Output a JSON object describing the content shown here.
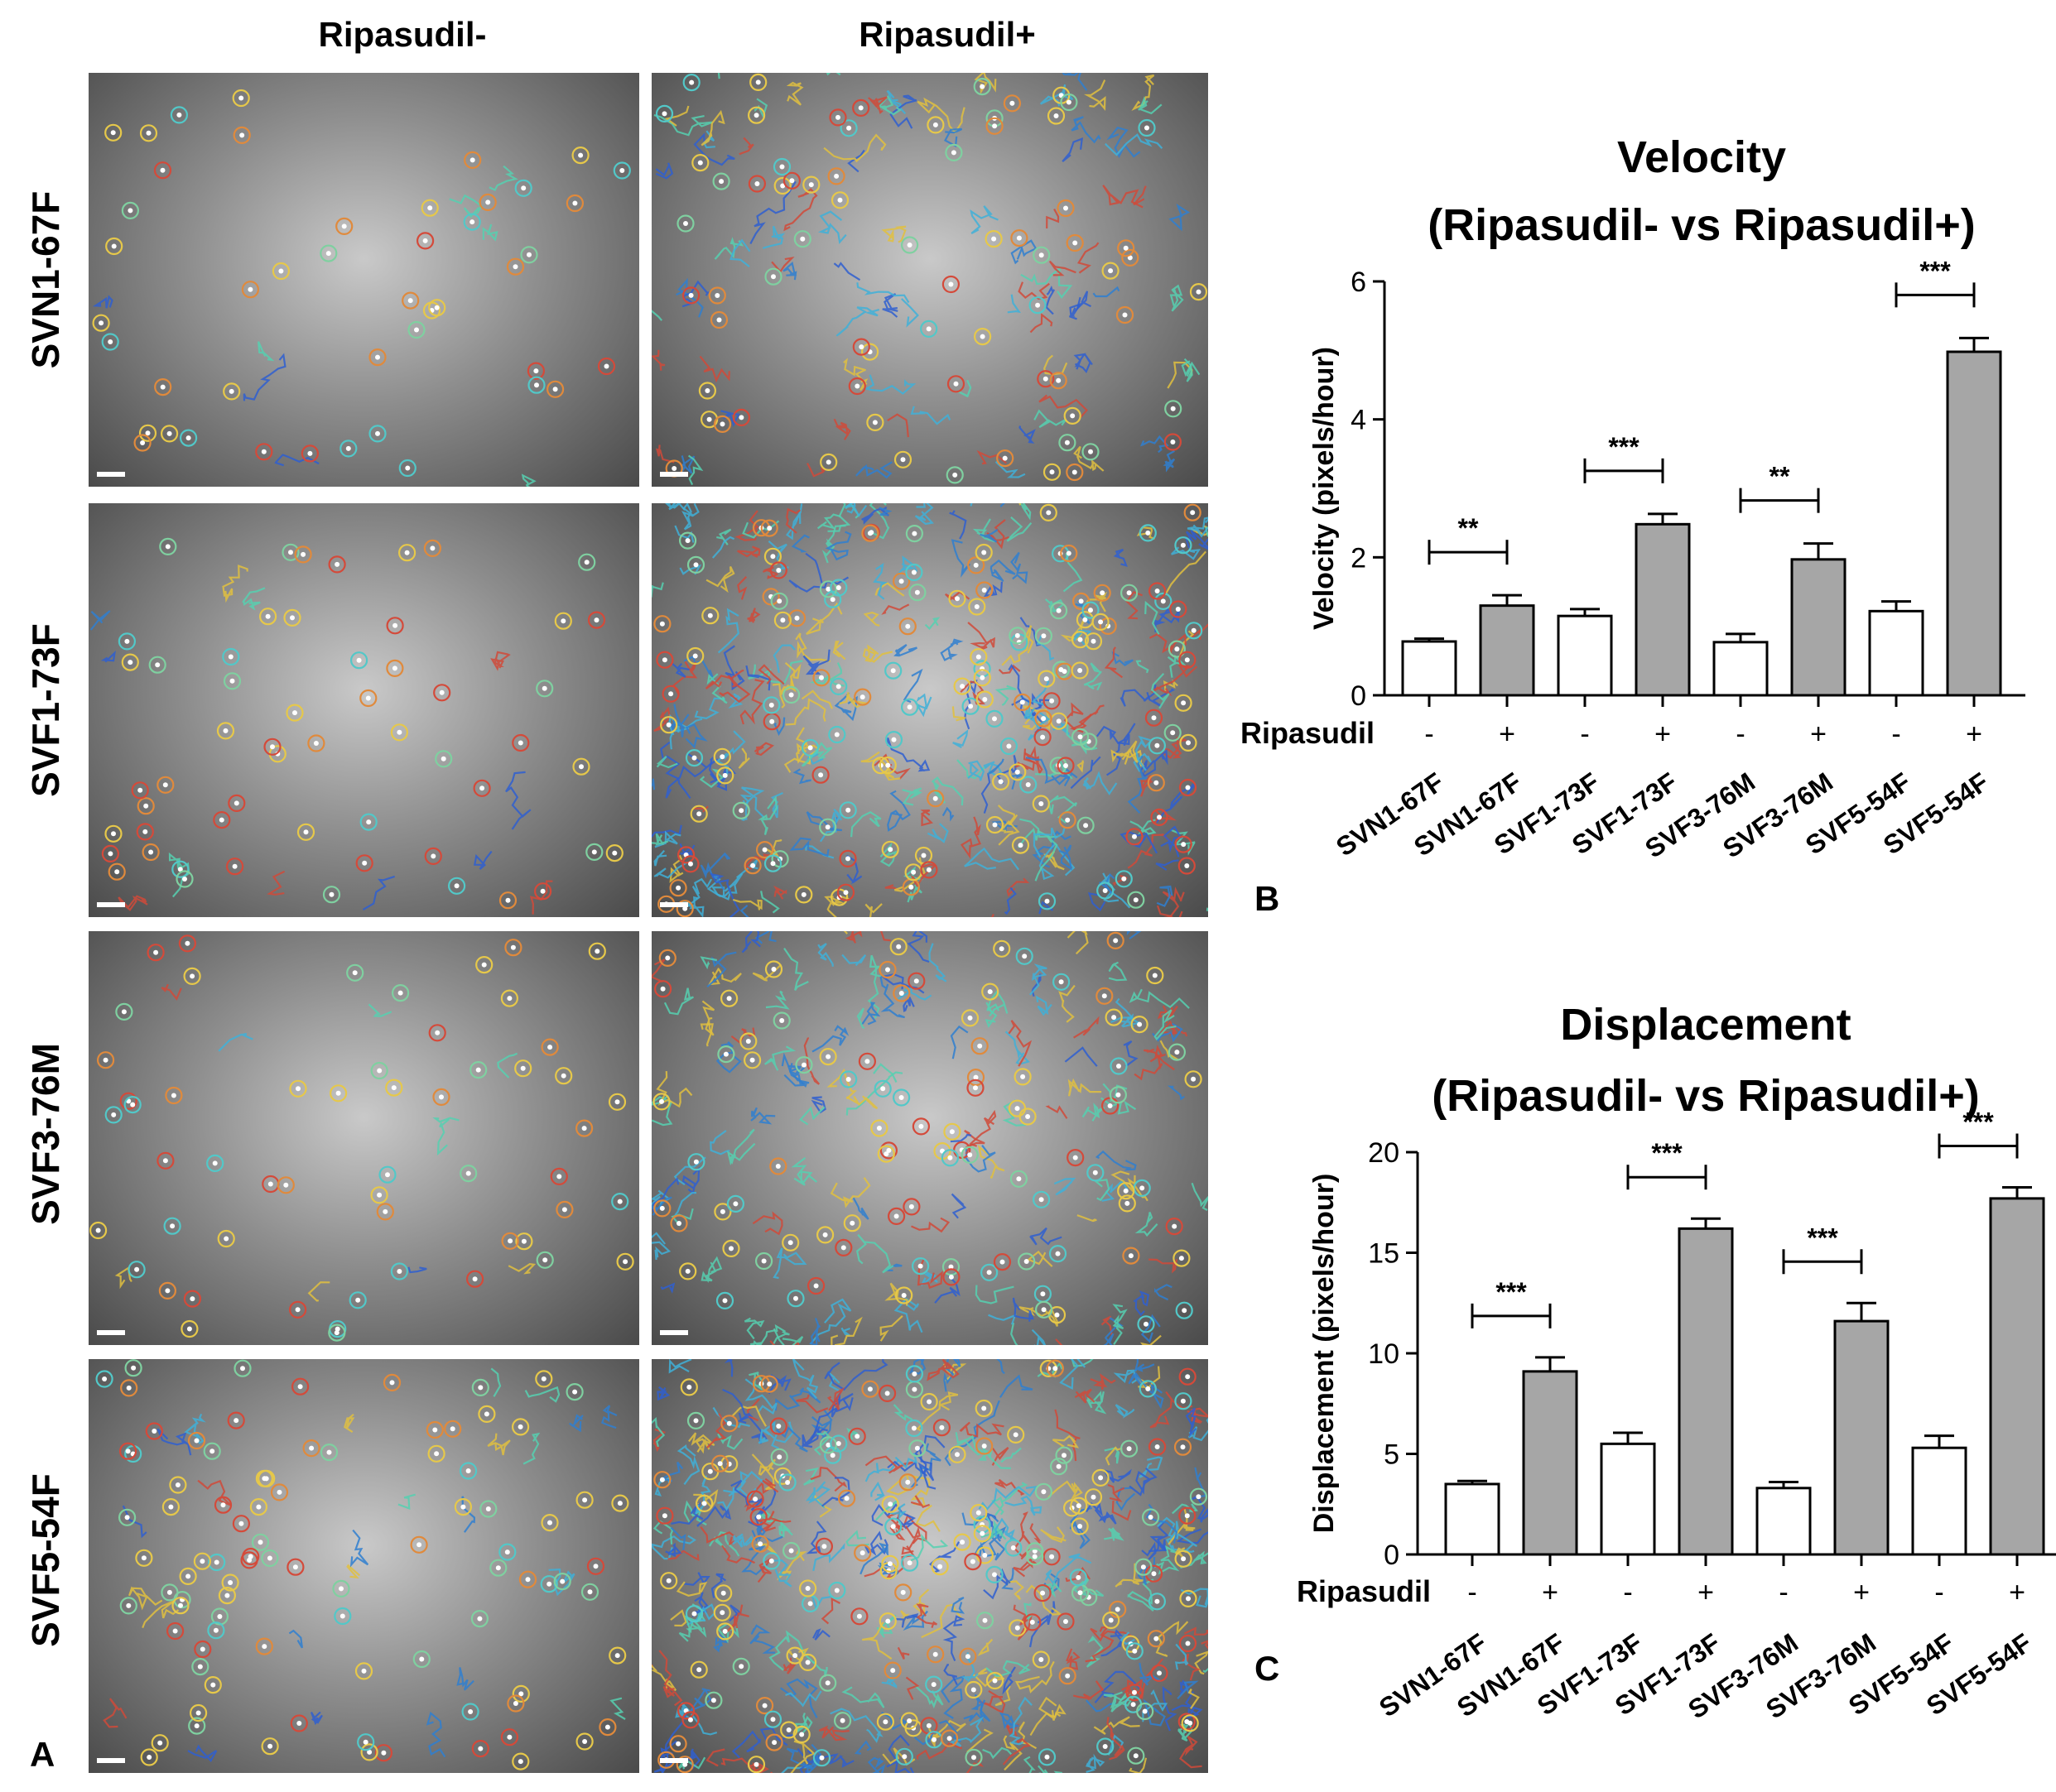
{
  "panel_a": {
    "letter": "A",
    "columns": [
      "Ripasudil-",
      "Ripasudil+"
    ],
    "rows": [
      "SVN1-67F",
      "SVF1-73F",
      "SVF3-76M",
      "SVF5-54F"
    ]
  },
  "chart_data": [
    {
      "panel": "B",
      "type": "bar",
      "title_line1": "Velocity",
      "title_line2": "(Ripasudil- vs Ripasudil+)",
      "ylabel": "Velocity (pixels/hour)",
      "ylim": [
        0,
        6
      ],
      "yticks": [
        0,
        2,
        4,
        6
      ],
      "treatment_label": "Ripasudil",
      "categories": [
        "SVN1-67F",
        "SVN1-67F",
        "SVF1-73F",
        "SVF1-73F",
        "SVF3-76M",
        "SVF3-76M",
        "SVF5-54F",
        "SVF5-54F"
      ],
      "treatment": [
        "-",
        "+",
        "-",
        "+",
        "-",
        "+",
        "-",
        "+"
      ],
      "values": [
        0.78,
        1.3,
        1.15,
        2.48,
        0.77,
        1.97,
        1.22,
        4.98
      ],
      "errors": [
        0.04,
        0.15,
        0.1,
        0.15,
        0.12,
        0.23,
        0.14,
        0.2
      ],
      "bar_colors": [
        "#ffffff",
        "#a6a6a6",
        "#ffffff",
        "#a6a6a6",
        "#ffffff",
        "#a6a6a6",
        "#ffffff",
        "#a6a6a6"
      ],
      "significance": [
        {
          "pair": [
            0,
            1
          ],
          "label": "**"
        },
        {
          "pair": [
            2,
            3
          ],
          "label": "***"
        },
        {
          "pair": [
            4,
            5
          ],
          "label": "**"
        },
        {
          "pair": [
            6,
            7
          ],
          "label": "***"
        }
      ]
    },
    {
      "panel": "C",
      "type": "bar",
      "title_line1": "Displacement",
      "title_line2": "(Ripasudil- vs Ripasudil+)",
      "ylabel": "Displacement (pixels/hour)",
      "ylim": [
        0,
        20
      ],
      "yticks": [
        0,
        5,
        10,
        15,
        20
      ],
      "treatment_label": "Ripasudil",
      "categories": [
        "SVN1-67F",
        "SVN1-67F",
        "SVF1-73F",
        "SVF1-73F",
        "SVF3-76M",
        "SVF3-76M",
        "SVF5-54F",
        "SVF5-54F"
      ],
      "treatment": [
        "-",
        "+",
        "-",
        "+",
        "-",
        "+",
        "-",
        "+"
      ],
      "values": [
        3.5,
        9.1,
        5.5,
        16.2,
        3.3,
        11.6,
        5.3,
        17.7
      ],
      "errors": [
        0.15,
        0.7,
        0.55,
        0.5,
        0.3,
        0.9,
        0.6,
        0.55
      ],
      "bar_colors": [
        "#ffffff",
        "#a6a6a6",
        "#ffffff",
        "#a6a6a6",
        "#ffffff",
        "#a6a6a6",
        "#ffffff",
        "#a6a6a6"
      ],
      "significance": [
        {
          "pair": [
            0,
            1
          ],
          "label": "***"
        },
        {
          "pair": [
            2,
            3
          ],
          "label": "***"
        },
        {
          "pair": [
            4,
            5
          ],
          "label": "***"
        },
        {
          "pair": [
            6,
            7
          ],
          "label": "***"
        }
      ]
    }
  ]
}
